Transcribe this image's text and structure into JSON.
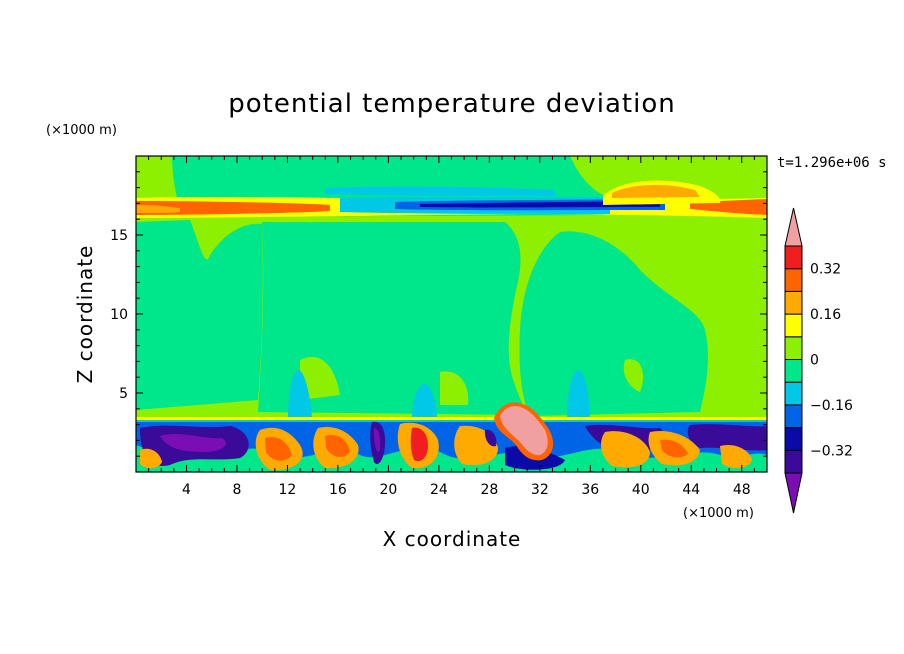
{
  "chart_data": {
    "type": "heatmap",
    "title": "potential temperature deviation",
    "xlabel": "X coordinate",
    "ylabel": "Z coordinate",
    "x_unit": "(×1000 m)",
    "y_unit": "(×1000 m)",
    "time_label": "t=1.296e+06 s",
    "xlim": [
      0,
      50
    ],
    "ylim": [
      0,
      20
    ],
    "x_ticks": [
      4,
      8,
      12,
      16,
      20,
      24,
      28,
      32,
      36,
      40,
      44,
      48
    ],
    "x_tick_labels": [
      "4",
      "8",
      "12",
      "16",
      "20",
      "24",
      "28",
      "32",
      "36",
      "40",
      "44",
      "48"
    ],
    "y_ticks": [
      5,
      10,
      15
    ],
    "y_tick_labels": [
      "5",
      "10",
      "15"
    ],
    "colorbar": {
      "levels": [
        -0.4,
        -0.32,
        -0.24,
        -0.16,
        -0.08,
        0,
        0.08,
        0.16,
        0.24,
        0.32,
        0.4
      ],
      "colors": [
        "#7a0eb4",
        "#3a0a98",
        "#0a0aa8",
        "#0064e6",
        "#00c8e6",
        "#00e68a",
        "#8cf000",
        "#ffff00",
        "#ffaa00",
        "#ff6400",
        "#f01e1e",
        "#f0a0a0"
      ],
      "tick_values": [
        0.32,
        0.16,
        0,
        -0.16,
        -0.32
      ],
      "tick_labels": [
        "0.32",
        "0.16",
        "0",
        "−0.16",
        "−0.32"
      ]
    }
  }
}
